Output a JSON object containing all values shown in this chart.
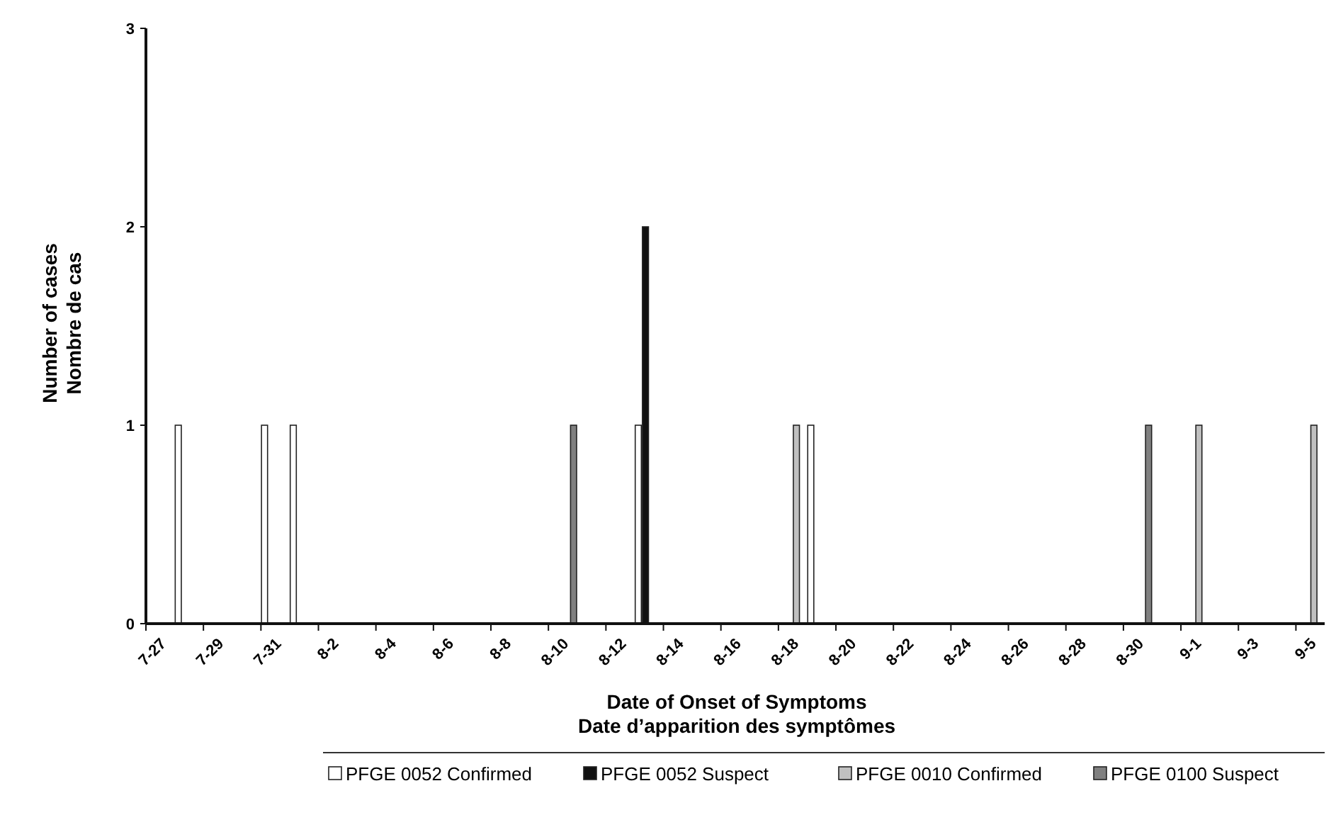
{
  "chart_data": {
    "type": "bar",
    "xlabel": "Date of Onset of Symptoms\nDate d’apparition des symptômes",
    "ylabel": "Number of cases\nNombre de cas",
    "categories": [
      "7-27",
      null,
      "7-29",
      null,
      "7-31",
      null,
      "8-2",
      null,
      "8-4",
      null,
      "8-6",
      null,
      "8-8",
      null,
      "8-10",
      null,
      "8-12",
      null,
      "8-14",
      null,
      "8-16",
      null,
      "8-18",
      null,
      "8-20",
      null,
      "8-22",
      null,
      "8-24",
      null,
      "8-26",
      null,
      "8-28",
      null,
      "8-30",
      null,
      "9-1",
      null,
      "9-3",
      null,
      "9-5"
    ],
    "series": [
      {
        "name": "PFGE 0052 Confirmed",
        "color": "#ffffff",
        "values": [
          0,
          1,
          0,
          0,
          1,
          1,
          0,
          0,
          0,
          0,
          0,
          0,
          0,
          0,
          0,
          0,
          0,
          1,
          0,
          0,
          0,
          0,
          0,
          1,
          0,
          0,
          0,
          0,
          0,
          0,
          0,
          0,
          0,
          0,
          0,
          0,
          0,
          0,
          0,
          0,
          0
        ]
      },
      {
        "name": "PFGE 0052 Suspect",
        "color": "#111111",
        "values": [
          0,
          0,
          0,
          0,
          0,
          0,
          0,
          0,
          0,
          0,
          0,
          0,
          0,
          0,
          0,
          0,
          0,
          2,
          0,
          0,
          0,
          0,
          0,
          0,
          0,
          0,
          0,
          0,
          0,
          0,
          0,
          0,
          0,
          0,
          0,
          0,
          0,
          0,
          0,
          0,
          0
        ]
      },
      {
        "name": "PFGE 0010 Confirmed",
        "color": "#c0c0c0",
        "values": [
          0,
          0,
          0,
          0,
          0,
          0,
          0,
          0,
          0,
          0,
          0,
          0,
          0,
          0,
          0,
          0,
          0,
          0,
          0,
          0,
          0,
          0,
          1,
          0,
          0,
          0,
          0,
          0,
          0,
          0,
          0,
          0,
          0,
          0,
          0,
          0,
          1,
          0,
          0,
          0,
          1
        ]
      },
      {
        "name": "PFGE 0100 Suspect",
        "color": "#808080",
        "values": [
          0,
          0,
          0,
          0,
          0,
          0,
          0,
          0,
          0,
          0,
          0,
          0,
          0,
          0,
          1,
          0,
          0,
          0,
          0,
          0,
          0,
          0,
          0,
          0,
          0,
          0,
          0,
          0,
          0,
          0,
          0,
          0,
          0,
          0,
          1,
          0,
          0,
          0,
          0,
          0,
          0
        ]
      }
    ],
    "ylim": [
      0,
      3
    ],
    "yticks": [
      0,
      1,
      2,
      3
    ],
    "legend": "bottom"
  }
}
